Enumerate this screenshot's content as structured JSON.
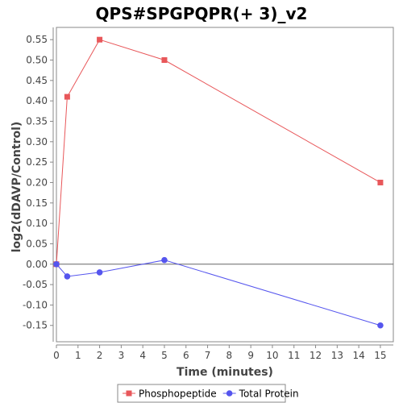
{
  "chart_data": {
    "type": "line",
    "title": "QPS#SPGPQPR(+ 3)_v2",
    "xlabel": "Time (minutes)",
    "ylabel": "log2(dDAVP/Control)",
    "xlim": [
      0,
      15.6
    ],
    "ylim": [
      -0.19,
      0.58
    ],
    "xticks": [
      0,
      1,
      2,
      3,
      4,
      5,
      6,
      7,
      8,
      9,
      10,
      11,
      12,
      13,
      14,
      15
    ],
    "yticks": [
      -0.15,
      -0.1,
      -0.05,
      0.0,
      0.05,
      0.1,
      0.15,
      0.2,
      0.25,
      0.3,
      0.35,
      0.4,
      0.45,
      0.5,
      0.55
    ],
    "ytick_labels": [
      "-0.15",
      "-0.10",
      "-0.05",
      "0.00",
      "0.05",
      "0.10",
      "0.15",
      "0.20",
      "0.25",
      "0.30",
      "0.35",
      "0.40",
      "0.45",
      "0.50",
      "0.55"
    ],
    "grid": false,
    "zero_line": true,
    "legend_position": "bottom",
    "series": [
      {
        "name": "Phosphopeptide",
        "color": "#e8575a",
        "marker": "square",
        "x": [
          0,
          0.5,
          2,
          5,
          15
        ],
        "y": [
          0.0,
          0.41,
          0.55,
          0.5,
          0.2
        ]
      },
      {
        "name": "Total Protein",
        "color": "#5555ee",
        "marker": "circle",
        "x": [
          0,
          0.5,
          2,
          5,
          15
        ],
        "y": [
          0.0,
          -0.03,
          -0.02,
          0.01,
          -0.15
        ]
      }
    ]
  }
}
